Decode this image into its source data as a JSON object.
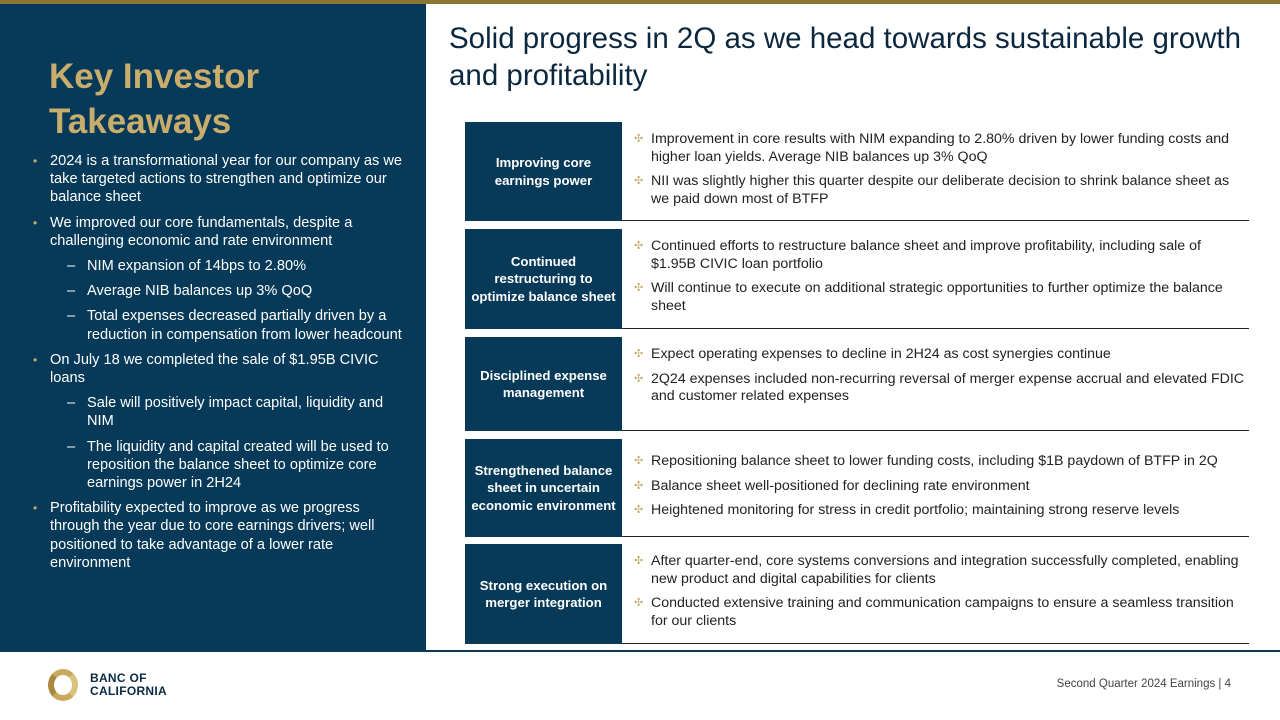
{
  "left": {
    "title": "Key Investor Takeaways",
    "bullets": [
      {
        "level": 1,
        "text": "2024 is a transformational year for our company as we take targeted actions to strengthen and optimize our balance sheet"
      },
      {
        "level": 1,
        "text": "We improved our core fundamentals, despite a challenging economic and rate environment"
      },
      {
        "level": 2,
        "text": "NIM expansion of 14bps to 2.80%"
      },
      {
        "level": 2,
        "text": "Average NIB balances up 3% QoQ"
      },
      {
        "level": 2,
        "text": "Total expenses decreased partially driven by a reduction in compensation from lower headcount"
      },
      {
        "level": 1,
        "text": "On July 18 we completed the sale of $1.95B CIVIC loans"
      },
      {
        "level": 2,
        "text": "Sale will positively impact capital, liquidity and NIM"
      },
      {
        "level": 2,
        "text": "The liquidity and capital created will be used to reposition the balance sheet to optimize core earnings power in 2H24"
      },
      {
        "level": 1,
        "text": "Profitability expected to improve as we progress through the year due to core earnings drivers; well positioned to take advantage of a lower rate environment"
      }
    ]
  },
  "main": {
    "title": "Solid progress in 2Q as we head towards sustainable growth and profitability",
    "rows": [
      {
        "label": "Improving core earnings power",
        "points": [
          "Improvement in core results with NIM expanding to 2.80% driven by lower funding costs and higher loan yields. Average NIB balances up 3% QoQ",
          "NII was slightly higher this quarter despite our deliberate decision to shrink balance sheet as we paid down most of BTFP"
        ]
      },
      {
        "label": "Continued restructuring to optimize balance sheet",
        "points": [
          "Continued efforts to restructure balance sheet and improve profitability, including sale of $1.95B CIVIC loan portfolio",
          "Will continue to execute on additional strategic opportunities to further optimize the balance sheet"
        ]
      },
      {
        "label": "Disciplined expense management",
        "points": [
          "Expect operating expenses to decline in 2H24 as cost synergies continue",
          "2Q24 expenses included non-recurring reversal of merger expense accrual and elevated FDIC and customer related expenses"
        ]
      },
      {
        "label": "Strengthened balance sheet in uncertain economic environment",
        "points": [
          "Repositioning balance sheet to lower funding costs, including $1B paydown of BTFP in 2Q",
          "Balance sheet well-positioned for declining rate environment",
          "Heightened monitoring for stress in credit portfolio; maintaining strong reserve levels"
        ]
      },
      {
        "label": "Strong execution on merger integration",
        "points": [
          "After quarter-end, core systems conversions and integration successfully completed, enabling new product and digital capabilities for clients",
          "Conducted extensive training and communication campaigns to ensure a seamless transition for our clients"
        ]
      }
    ]
  },
  "footer": {
    "logo_line1": "BANC OF",
    "logo_line2": "CALIFORNIA",
    "text": "Second Quarter 2024 Earnings |  4"
  },
  "colors": {
    "navy": "#063a58",
    "gold": "#c9ad6c"
  }
}
